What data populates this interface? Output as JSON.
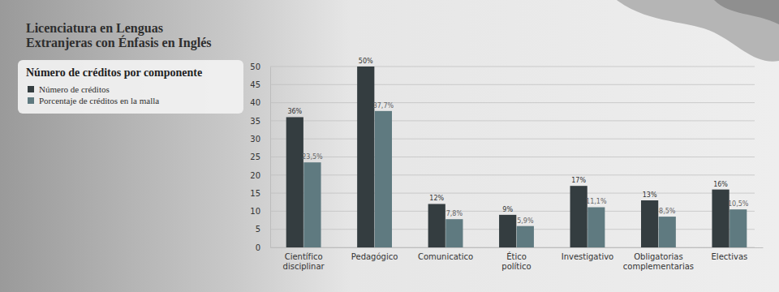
{
  "chart_data": {
    "type": "bar",
    "title": "Licenciatura en Lenguas Extranjeras con Énfasis en Inglés",
    "subtitle": "Número de créditos por componente",
    "categories": [
      "Científico disciplinar",
      "Pedagógico",
      "Comunicatico",
      "Ético político",
      "Investigativo",
      "Obligatorias complementarias",
      "Electivas"
    ],
    "series": [
      {
        "name": "Número de créditos",
        "color": "#343d40",
        "values": [
          36,
          50,
          12,
          9,
          17,
          13,
          16
        ],
        "value_labels": [
          "36%",
          "50%",
          "12%",
          "9%",
          "17%",
          "13%",
          "16%"
        ]
      },
      {
        "name": "Porcentaje de créditos en la malla",
        "color": "#5f7a80",
        "values": [
          23.5,
          37.7,
          7.8,
          5.9,
          11.1,
          8.5,
          10.5
        ],
        "value_labels": [
          "23,5%",
          "37,7%",
          "7,8%",
          "5,9%",
          "11,1%",
          "8,5%",
          "10,5%"
        ]
      }
    ],
    "ylim": [
      0,
      50
    ],
    "yticks": [
      0,
      5,
      10,
      15,
      20,
      25,
      30,
      35,
      40,
      45,
      50
    ],
    "grid": true,
    "legend": "top-left",
    "data_labels": true
  }
}
